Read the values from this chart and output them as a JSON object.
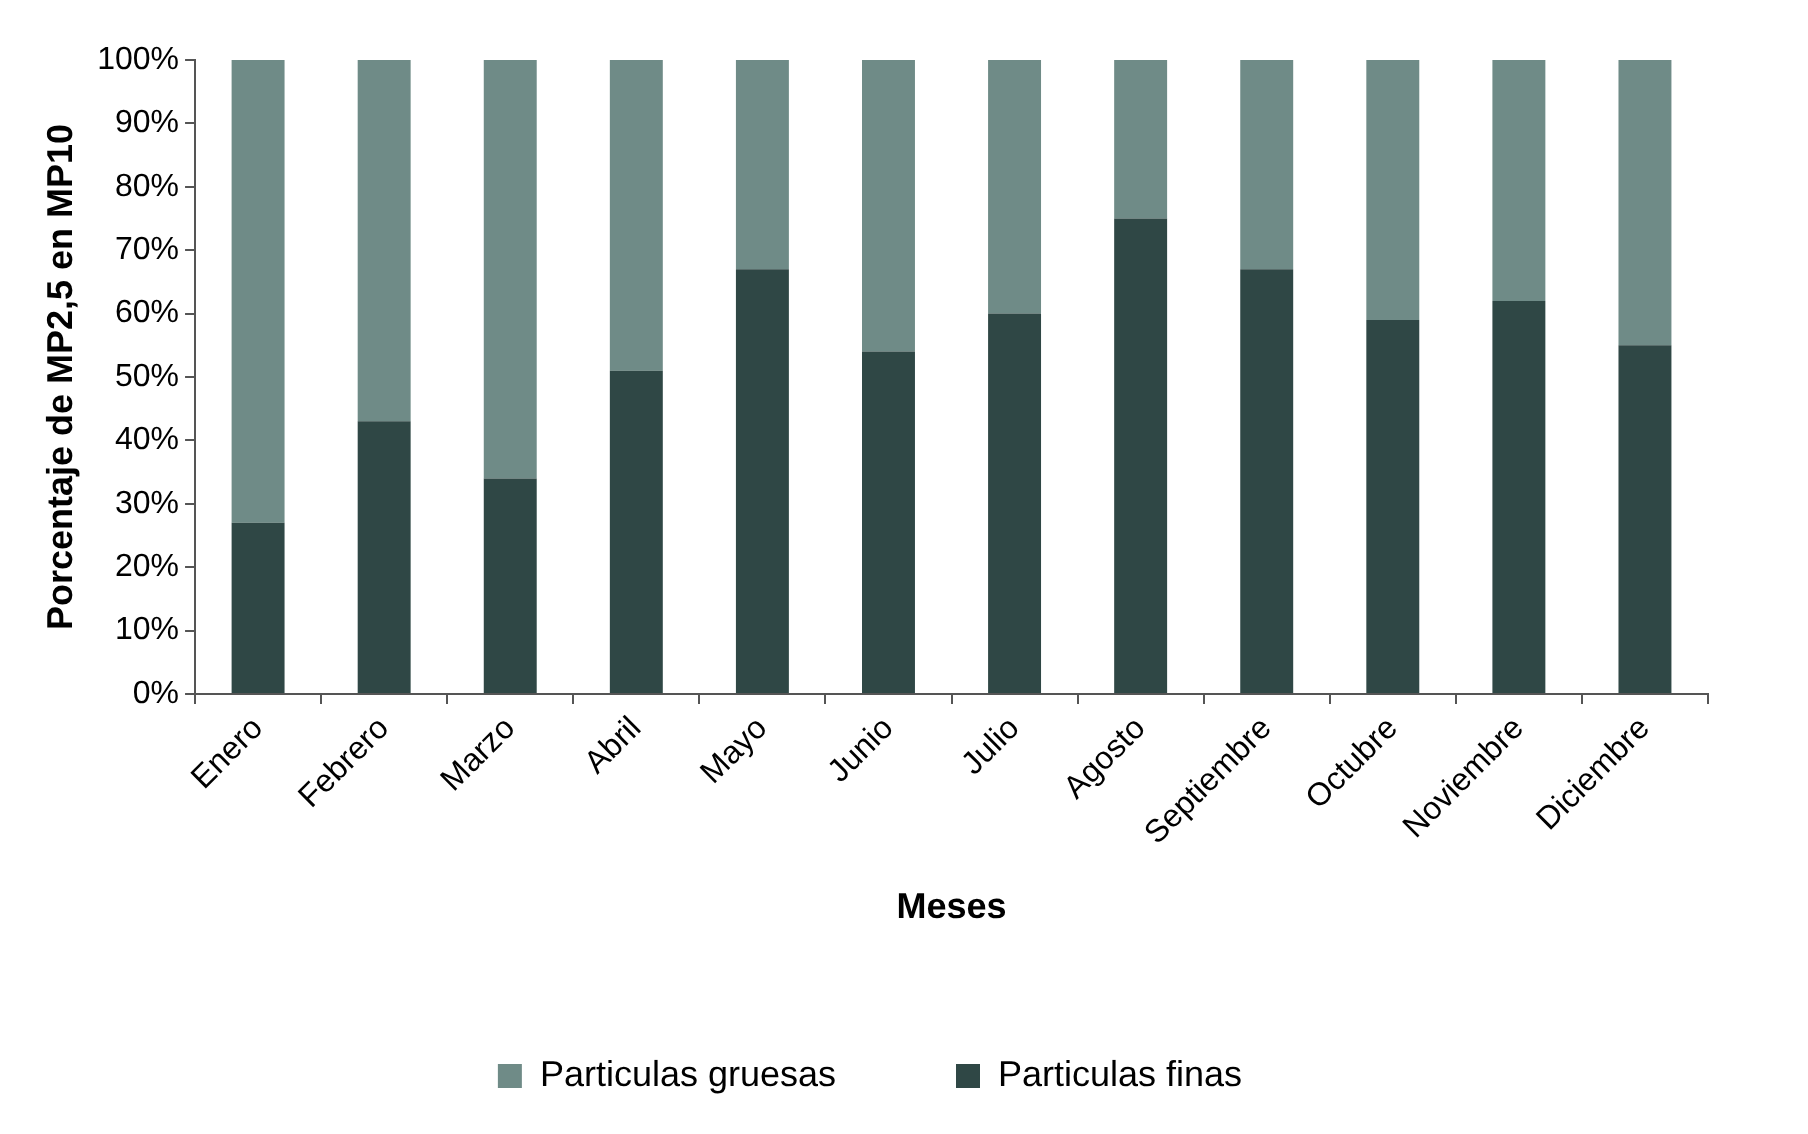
{
  "chart_data": {
    "type": "bar",
    "stacked": true,
    "xlabel": "Meses",
    "ylabel": "Porcentaje de MP2,5 en MP10",
    "categories": [
      "Enero",
      "Febrero",
      "Marzo",
      "Abril",
      "Mayo",
      "Junio",
      "Julio",
      "Agosto",
      "Septiembre",
      "Octubre",
      "Noviembre",
      "Diciembre"
    ],
    "series": [
      {
        "name": "Particulas finas",
        "color": "#2f4745",
        "values": [
          27,
          43,
          34,
          51,
          67,
          54,
          60,
          75,
          67,
          59,
          62,
          55
        ]
      },
      {
        "name": "Particulas gruesas",
        "color": "#6f8b87",
        "values": [
          73,
          57,
          66,
          49,
          33,
          46,
          40,
          25,
          33,
          41,
          38,
          45
        ]
      }
    ],
    "ylim": [
      0,
      100
    ],
    "yticks": [
      {
        "value": 0,
        "label": "0%"
      },
      {
        "value": 10,
        "label": "10%"
      },
      {
        "value": 20,
        "label": "20%"
      },
      {
        "value": 30,
        "label": "30%"
      },
      {
        "value": 40,
        "label": "40%"
      },
      {
        "value": 50,
        "label": "50%"
      },
      {
        "value": 60,
        "label": "60%"
      },
      {
        "value": 70,
        "label": "70%"
      },
      {
        "value": 80,
        "label": "80%"
      },
      {
        "value": 90,
        "label": "90%"
      },
      {
        "value": 100,
        "label": "100%"
      }
    ],
    "grid": false,
    "legend": "bottom"
  }
}
